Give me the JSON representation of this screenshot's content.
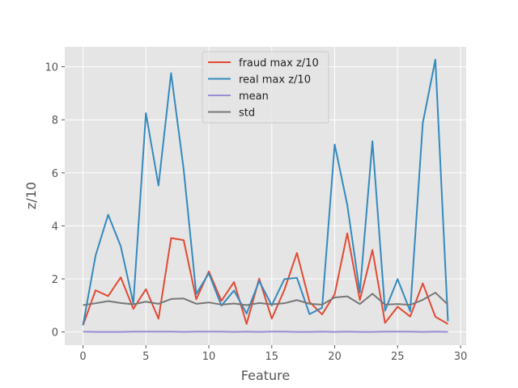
{
  "chart_data": {
    "type": "line",
    "title": "",
    "xlabel": "Feature",
    "ylabel": "z/10",
    "xlim": [
      -1.45,
      30.45
    ],
    "ylim": [
      -0.5,
      10.75
    ],
    "xticks": [
      0,
      5,
      10,
      15,
      20,
      25,
      30
    ],
    "yticks": [
      0,
      2,
      4,
      6,
      8,
      10
    ],
    "grid": true,
    "legend_position": "top-center",
    "x": [
      0,
      1,
      2,
      3,
      4,
      5,
      6,
      7,
      8,
      9,
      10,
      11,
      12,
      13,
      14,
      15,
      16,
      17,
      18,
      19,
      20,
      21,
      22,
      23,
      24,
      25,
      26,
      27,
      28,
      29
    ],
    "series": [
      {
        "name": "fraud max z/10",
        "color": "#E24A33",
        "values": [
          0.25,
          1.57,
          1.35,
          2.06,
          0.87,
          1.61,
          0.5,
          3.54,
          3.46,
          1.23,
          2.28,
          1.17,
          1.88,
          0.3,
          2.01,
          0.5,
          1.58,
          2.98,
          1.13,
          0.66,
          1.42,
          3.72,
          1.2,
          3.09,
          0.34,
          0.95,
          0.58,
          1.83,
          0.57,
          0.3
        ]
      },
      {
        "name": "real max z/10",
        "color": "#348ABD",
        "values": [
          0.25,
          2.88,
          4.42,
          3.23,
          1.08,
          8.25,
          5.52,
          9.76,
          6.13,
          1.43,
          2.21,
          0.99,
          1.56,
          0.69,
          1.92,
          1.0,
          1.99,
          2.04,
          0.67,
          0.91,
          7.07,
          4.79,
          1.49,
          7.19,
          0.8,
          1.99,
          0.78,
          7.88,
          10.27,
          0.4
        ]
      },
      {
        "name": "mean",
        "color": "#988ED5",
        "values": [
          0.01,
          0.0,
          0.0,
          0.0,
          0.01,
          0.01,
          0.01,
          0.01,
          0.0,
          0.01,
          0.01,
          0.01,
          0.0,
          0.01,
          0.0,
          0.01,
          0.01,
          0.0,
          0.0,
          0.01,
          0.0,
          0.01,
          0.0,
          0.0,
          0.01,
          0.01,
          0.01,
          0.0,
          0.01,
          0.0
        ]
      },
      {
        "name": "std",
        "color": "#777777",
        "values": [
          1.01,
          1.08,
          1.16,
          1.09,
          1.04,
          1.14,
          1.06,
          1.24,
          1.26,
          1.06,
          1.11,
          1.03,
          1.07,
          1.01,
          1.09,
          1.04,
          1.08,
          1.2,
          1.06,
          1.03,
          1.3,
          1.34,
          1.05,
          1.44,
          1.03,
          1.05,
          1.02,
          1.21,
          1.48,
          1.03
        ]
      }
    ]
  }
}
